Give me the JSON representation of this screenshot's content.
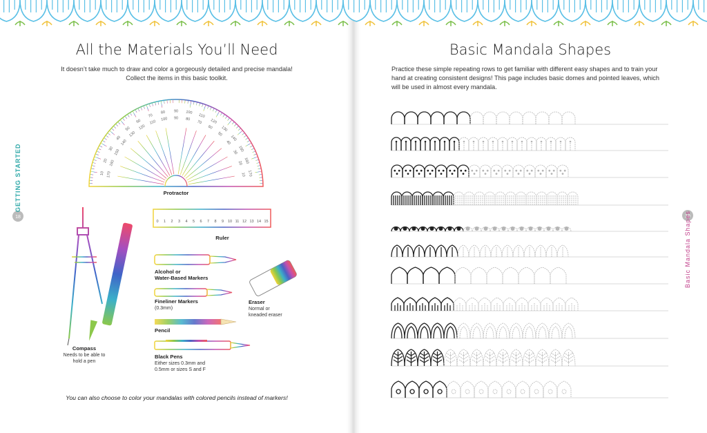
{
  "left_page": {
    "title": "All the Materials You’ll Need",
    "intro": "It doesn’t take much to draw and color a gorgeously detailed and precise mandala! Collect the items in this basic toolkit.",
    "side_tab": "GETTING STARTED",
    "page_number": "18",
    "tools": {
      "protractor": {
        "label": "Protractor",
        "outer_scale": [
          10,
          20,
          30,
          40,
          50,
          60,
          70,
          80,
          90,
          100,
          110,
          120,
          130,
          140,
          150,
          160,
          170
        ],
        "inner_scale": [
          170,
          160,
          150,
          140,
          130,
          120,
          110,
          100,
          90,
          80,
          70,
          60,
          50,
          40,
          30,
          20,
          10
        ]
      },
      "ruler": {
        "label": "Ruler",
        "scale": [
          0,
          1,
          2,
          3,
          4,
          5,
          6,
          7,
          8,
          9,
          10,
          11,
          12,
          13,
          14,
          15
        ]
      },
      "markers": {
        "label": [
          "Alcohol or",
          "Water-Based Markers"
        ]
      },
      "fineliner": {
        "label": "Fineliner Markers",
        "note": [
          "(0.3mm)"
        ]
      },
      "eraser": {
        "label": "Eraser",
        "note": [
          "Normal or",
          "kneaded eraser"
        ]
      },
      "pencil": {
        "label": "Pencil"
      },
      "pens": {
        "label": "Black Pens",
        "note": [
          "Either sizes 0.3mm and",
          "0.5mm or sizes S and F"
        ]
      },
      "compass": {
        "label": "Compass",
        "note": [
          "Needs to be able to",
          "hold a pen"
        ]
      }
    },
    "footnote": "You can also choose to color your mandalas with colored pencils instead of markers!"
  },
  "right_page": {
    "title": "Basic Mandala Shapes",
    "intro": "Practice these simple repeating rows to get familiar with different easy shapes and to train your hand at creating consistent designs! This page includes basic domes and pointed leaves, which will be used in almost every mandala.",
    "side_tab": "Basic Mandala Shapes",
    "page_number": "19"
  }
}
